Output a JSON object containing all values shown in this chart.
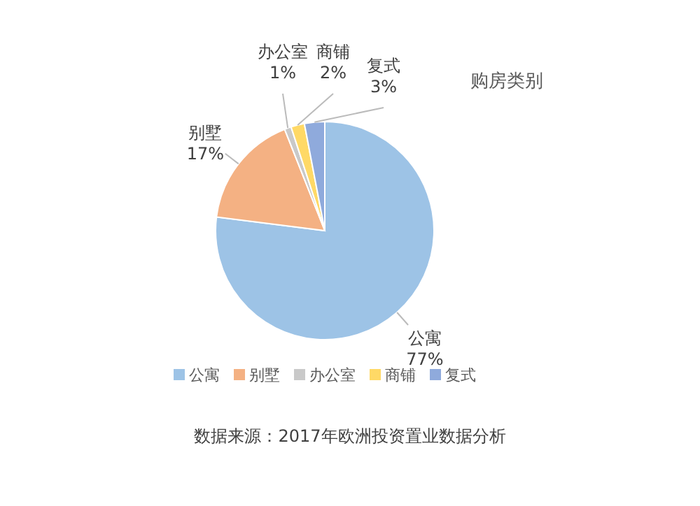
{
  "chart_data": {
    "type": "pie",
    "title": "购房类别",
    "categories": [
      "公寓",
      "别墅",
      "办公室",
      "商铺",
      "复式"
    ],
    "values": [
      77,
      17,
      1,
      2,
      3
    ],
    "colors": [
      "#9dc3e6",
      "#f4b183",
      "#c9c9c9",
      "#ffd966",
      "#8faadc"
    ],
    "value_labels": [
      "77%",
      "17%",
      "1%",
      "2%",
      "3%"
    ],
    "legend": "bottom",
    "annotations": [
      "数据来源：2017年欧洲投资置业数据分析"
    ]
  }
}
